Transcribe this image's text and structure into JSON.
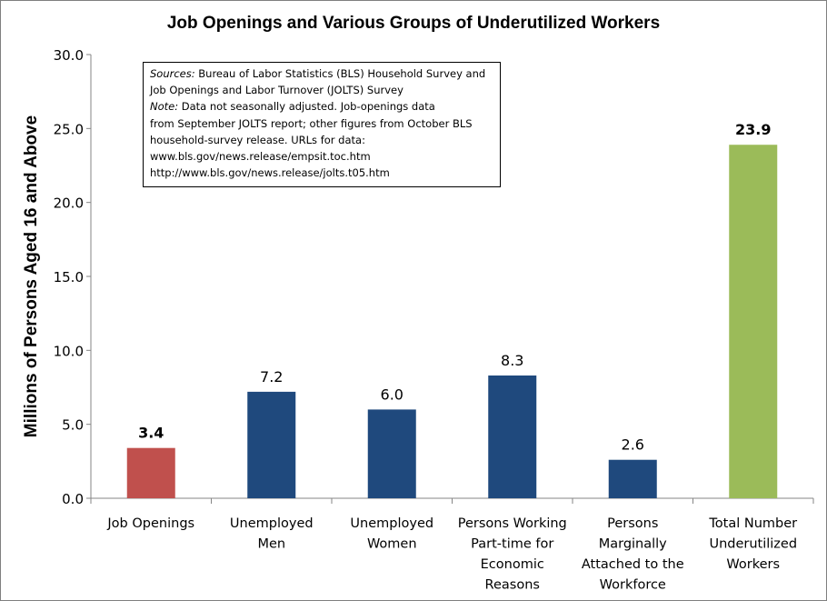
{
  "chart_data": {
    "type": "bar",
    "title": "Job Openings and Various Groups of Underutilized  Workers",
    "xlabel": "",
    "ylabel": "Millions of Persons Aged 16 and Above",
    "ylim": [
      0,
      30
    ],
    "yticks": [
      "0.0",
      "5.0",
      "10.0",
      "15.0",
      "20.0",
      "25.0",
      "30.0"
    ],
    "ytick_values": [
      0,
      5,
      10,
      15,
      20,
      25,
      30
    ],
    "grid": false,
    "categories": [
      [
        "Job Openings"
      ],
      [
        "Unemployed",
        "Men"
      ],
      [
        "Unemployed",
        "Women"
      ],
      [
        "Persons Working",
        "Part-time for",
        "Economic",
        "Reasons"
      ],
      [
        "Persons",
        "Marginally",
        "Attached to the",
        "Workforce"
      ],
      [
        "Total Number",
        "Underutilized",
        "Workers"
      ]
    ],
    "values": [
      3.4,
      7.2,
      6.0,
      8.3,
      2.6,
      23.9
    ],
    "data_labels": [
      "3.4",
      "7.2",
      "6.0",
      "8.3",
      "2.6",
      "23.9"
    ],
    "label_bold": [
      true,
      false,
      false,
      false,
      false,
      true
    ],
    "colors": [
      "#c0504d",
      "#1f497d",
      "#1f497d",
      "#1f497d",
      "#1f497d",
      "#9bbb59"
    ]
  },
  "note": {
    "sources_label": "Sources:",
    "sources_text": " Bureau of Labor Statistics (BLS) Household Survey and",
    "line2": "Job Openings and Labor Turnover (JOLTS) Survey",
    "note_label": "Note:",
    "note_text": " Data not seasonally adjusted. Job-openings data",
    "line4": "from September JOLTS report; other figures  from October BLS",
    "line5": "household-survey release. URLs for data:",
    "line6": " www.bls.gov/news.release/empsit.toc.htm",
    "line7": "http://www.bls.gov/news.release/jolts.t05.htm"
  }
}
